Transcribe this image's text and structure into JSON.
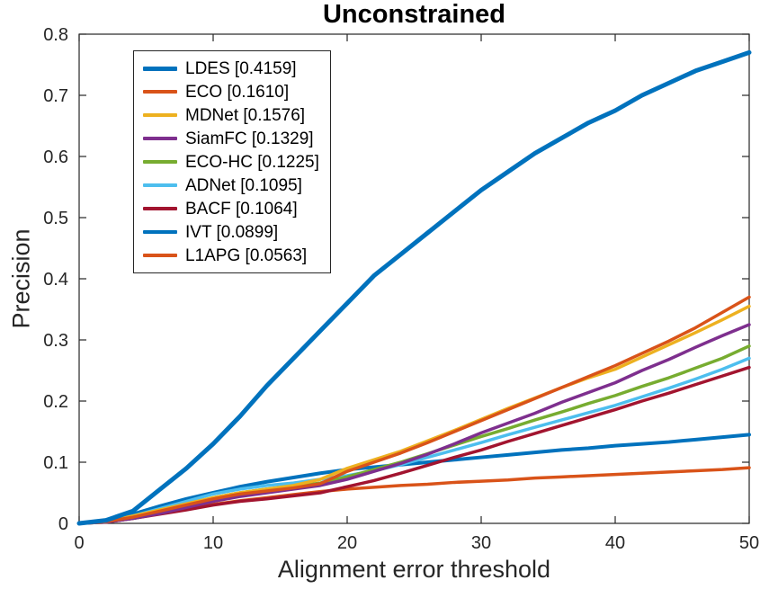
{
  "figure": {
    "title": "Unconstrained",
    "xlabel": "Alignment error threshold",
    "ylabel": "Precision"
  },
  "chart_data": {
    "type": "line",
    "title": "Unconstrained",
    "xlabel": "Alignment error threshold",
    "ylabel": "Precision",
    "xlim": [
      0,
      50
    ],
    "ylim": [
      0,
      0.8
    ],
    "xticks": [
      0,
      10,
      20,
      30,
      40,
      50
    ],
    "yticks": [
      0,
      0.1,
      0.2,
      0.3,
      0.4,
      0.5,
      0.6,
      0.7,
      0.8
    ],
    "grid": false,
    "legend_position": "top-left-inside",
    "x": [
      0,
      2,
      4,
      6,
      8,
      10,
      12,
      14,
      16,
      18,
      20,
      22,
      24,
      26,
      28,
      30,
      32,
      34,
      36,
      38,
      40,
      42,
      44,
      46,
      48,
      50
    ],
    "series": [
      {
        "name": "LDES [0.4159]",
        "color": "#0072BD",
        "width": 5,
        "values": [
          0,
          0.005,
          0.02,
          0.055,
          0.09,
          0.13,
          0.175,
          0.225,
          0.27,
          0.315,
          0.36,
          0.405,
          0.44,
          0.475,
          0.51,
          0.545,
          0.575,
          0.605,
          0.63,
          0.655,
          0.675,
          0.7,
          0.72,
          0.74,
          0.755,
          0.77
        ]
      },
      {
        "name": "ECO [0.1610]",
        "color": "#D95319",
        "width": 3.5,
        "values": [
          0,
          0.003,
          0.01,
          0.02,
          0.03,
          0.04,
          0.048,
          0.053,
          0.058,
          0.065,
          0.085,
          0.1,
          0.115,
          0.132,
          0.15,
          0.168,
          0.186,
          0.204,
          0.222,
          0.24,
          0.258,
          0.278,
          0.298,
          0.32,
          0.345,
          0.37
        ]
      },
      {
        "name": "MDNet [0.1576]",
        "color": "#EDB120",
        "width": 3.5,
        "values": [
          0,
          0.003,
          0.012,
          0.022,
          0.032,
          0.042,
          0.05,
          0.056,
          0.062,
          0.072,
          0.09,
          0.104,
          0.118,
          0.135,
          0.152,
          0.17,
          0.188,
          0.205,
          0.222,
          0.238,
          0.252,
          0.272,
          0.292,
          0.312,
          0.333,
          0.355
        ]
      },
      {
        "name": "SiamFC [0.1329]",
        "color": "#7E2F8E",
        "width": 3.5,
        "values": [
          0,
          0.002,
          0.008,
          0.016,
          0.026,
          0.036,
          0.044,
          0.05,
          0.056,
          0.062,
          0.072,
          0.085,
          0.098,
          0.113,
          0.13,
          0.148,
          0.164,
          0.18,
          0.198,
          0.214,
          0.23,
          0.25,
          0.268,
          0.288,
          0.307,
          0.325
        ]
      },
      {
        "name": "ECO-HC [0.1225]",
        "color": "#77AC30",
        "width": 3.5,
        "values": [
          0,
          0.002,
          0.009,
          0.018,
          0.03,
          0.042,
          0.05,
          0.056,
          0.06,
          0.066,
          0.076,
          0.088,
          0.1,
          0.114,
          0.128,
          0.142,
          0.155,
          0.169,
          0.182,
          0.196,
          0.209,
          0.224,
          0.238,
          0.254,
          0.27,
          0.29
        ]
      },
      {
        "name": "ADNet [0.1095]",
        "color": "#4DBEEE",
        "width": 3.5,
        "values": [
          0,
          0.003,
          0.012,
          0.024,
          0.036,
          0.048,
          0.056,
          0.062,
          0.066,
          0.072,
          0.078,
          0.086,
          0.096,
          0.108,
          0.12,
          0.132,
          0.145,
          0.157,
          0.169,
          0.181,
          0.193,
          0.207,
          0.221,
          0.236,
          0.252,
          0.27
        ]
      },
      {
        "name": "BACF [0.1064]",
        "color": "#A2142F",
        "width": 3.5,
        "values": [
          0,
          0.002,
          0.008,
          0.015,
          0.022,
          0.03,
          0.036,
          0.04,
          0.045,
          0.05,
          0.06,
          0.07,
          0.082,
          0.095,
          0.108,
          0.12,
          0.134,
          0.147,
          0.16,
          0.173,
          0.186,
          0.2,
          0.213,
          0.227,
          0.241,
          0.255
        ]
      },
      {
        "name": "IVT [0.0899]",
        "color": "#0072BD",
        "width": 4,
        "values": [
          0,
          0.005,
          0.015,
          0.028,
          0.04,
          0.05,
          0.06,
          0.068,
          0.075,
          0.082,
          0.088,
          0.092,
          0.096,
          0.1,
          0.104,
          0.108,
          0.112,
          0.116,
          0.12,
          0.123,
          0.127,
          0.13,
          0.133,
          0.137,
          0.141,
          0.145
        ]
      },
      {
        "name": "L1APG [0.0563]",
        "color": "#D95319",
        "width": 3.5,
        "values": [
          0,
          0.002,
          0.008,
          0.016,
          0.024,
          0.031,
          0.037,
          0.042,
          0.047,
          0.052,
          0.056,
          0.059,
          0.062,
          0.064,
          0.067,
          0.069,
          0.071,
          0.074,
          0.076,
          0.078,
          0.08,
          0.082,
          0.084,
          0.086,
          0.088,
          0.091
        ]
      }
    ]
  }
}
